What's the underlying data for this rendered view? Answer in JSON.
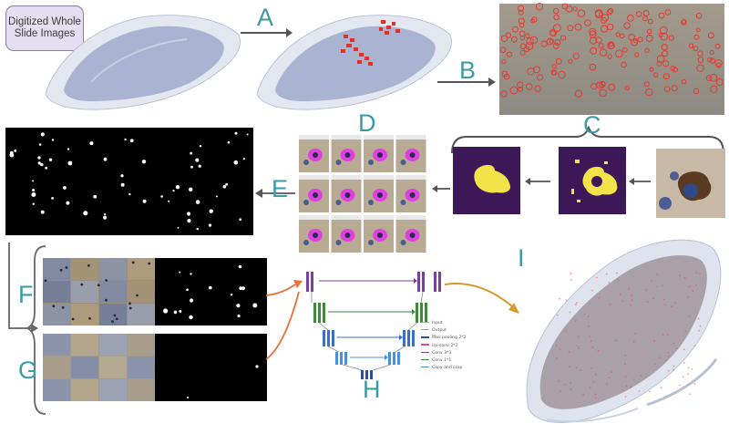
{
  "wsi_label": "Digitized Whole Slide Images",
  "steps": {
    "A": "A",
    "B": "B",
    "C": "C",
    "D": "D",
    "E": "E",
    "F": "F",
    "G": "G",
    "H": "H",
    "I": "I"
  },
  "unet_legend": [
    {
      "label": "Input",
      "color": "#e8a030"
    },
    {
      "label": "Output",
      "color": "#d4a017"
    },
    {
      "label": "Max pooling 2*2",
      "color": "#2b4f9e"
    },
    {
      "label": "Up-conv 2*2",
      "color": "#d94a8c"
    },
    {
      "label": "Conv 3*3",
      "color": "#7a3fa0"
    },
    {
      "label": "Conv 1*1",
      "color": "#3a8a3a"
    },
    {
      "label": "Copy and crop",
      "color": "#4a90d9"
    }
  ],
  "colors": {
    "step_letter": "#3b9aa6",
    "tissue": "#b3bdd6",
    "detection_red": "#e0302a",
    "mask_purple": "#3d1859",
    "mask_yellow": "#f2e34a",
    "cell_magenta": "#e040e0",
    "arrow_orange": "#e8703a",
    "arrow_gold": "#d49a2a"
  }
}
